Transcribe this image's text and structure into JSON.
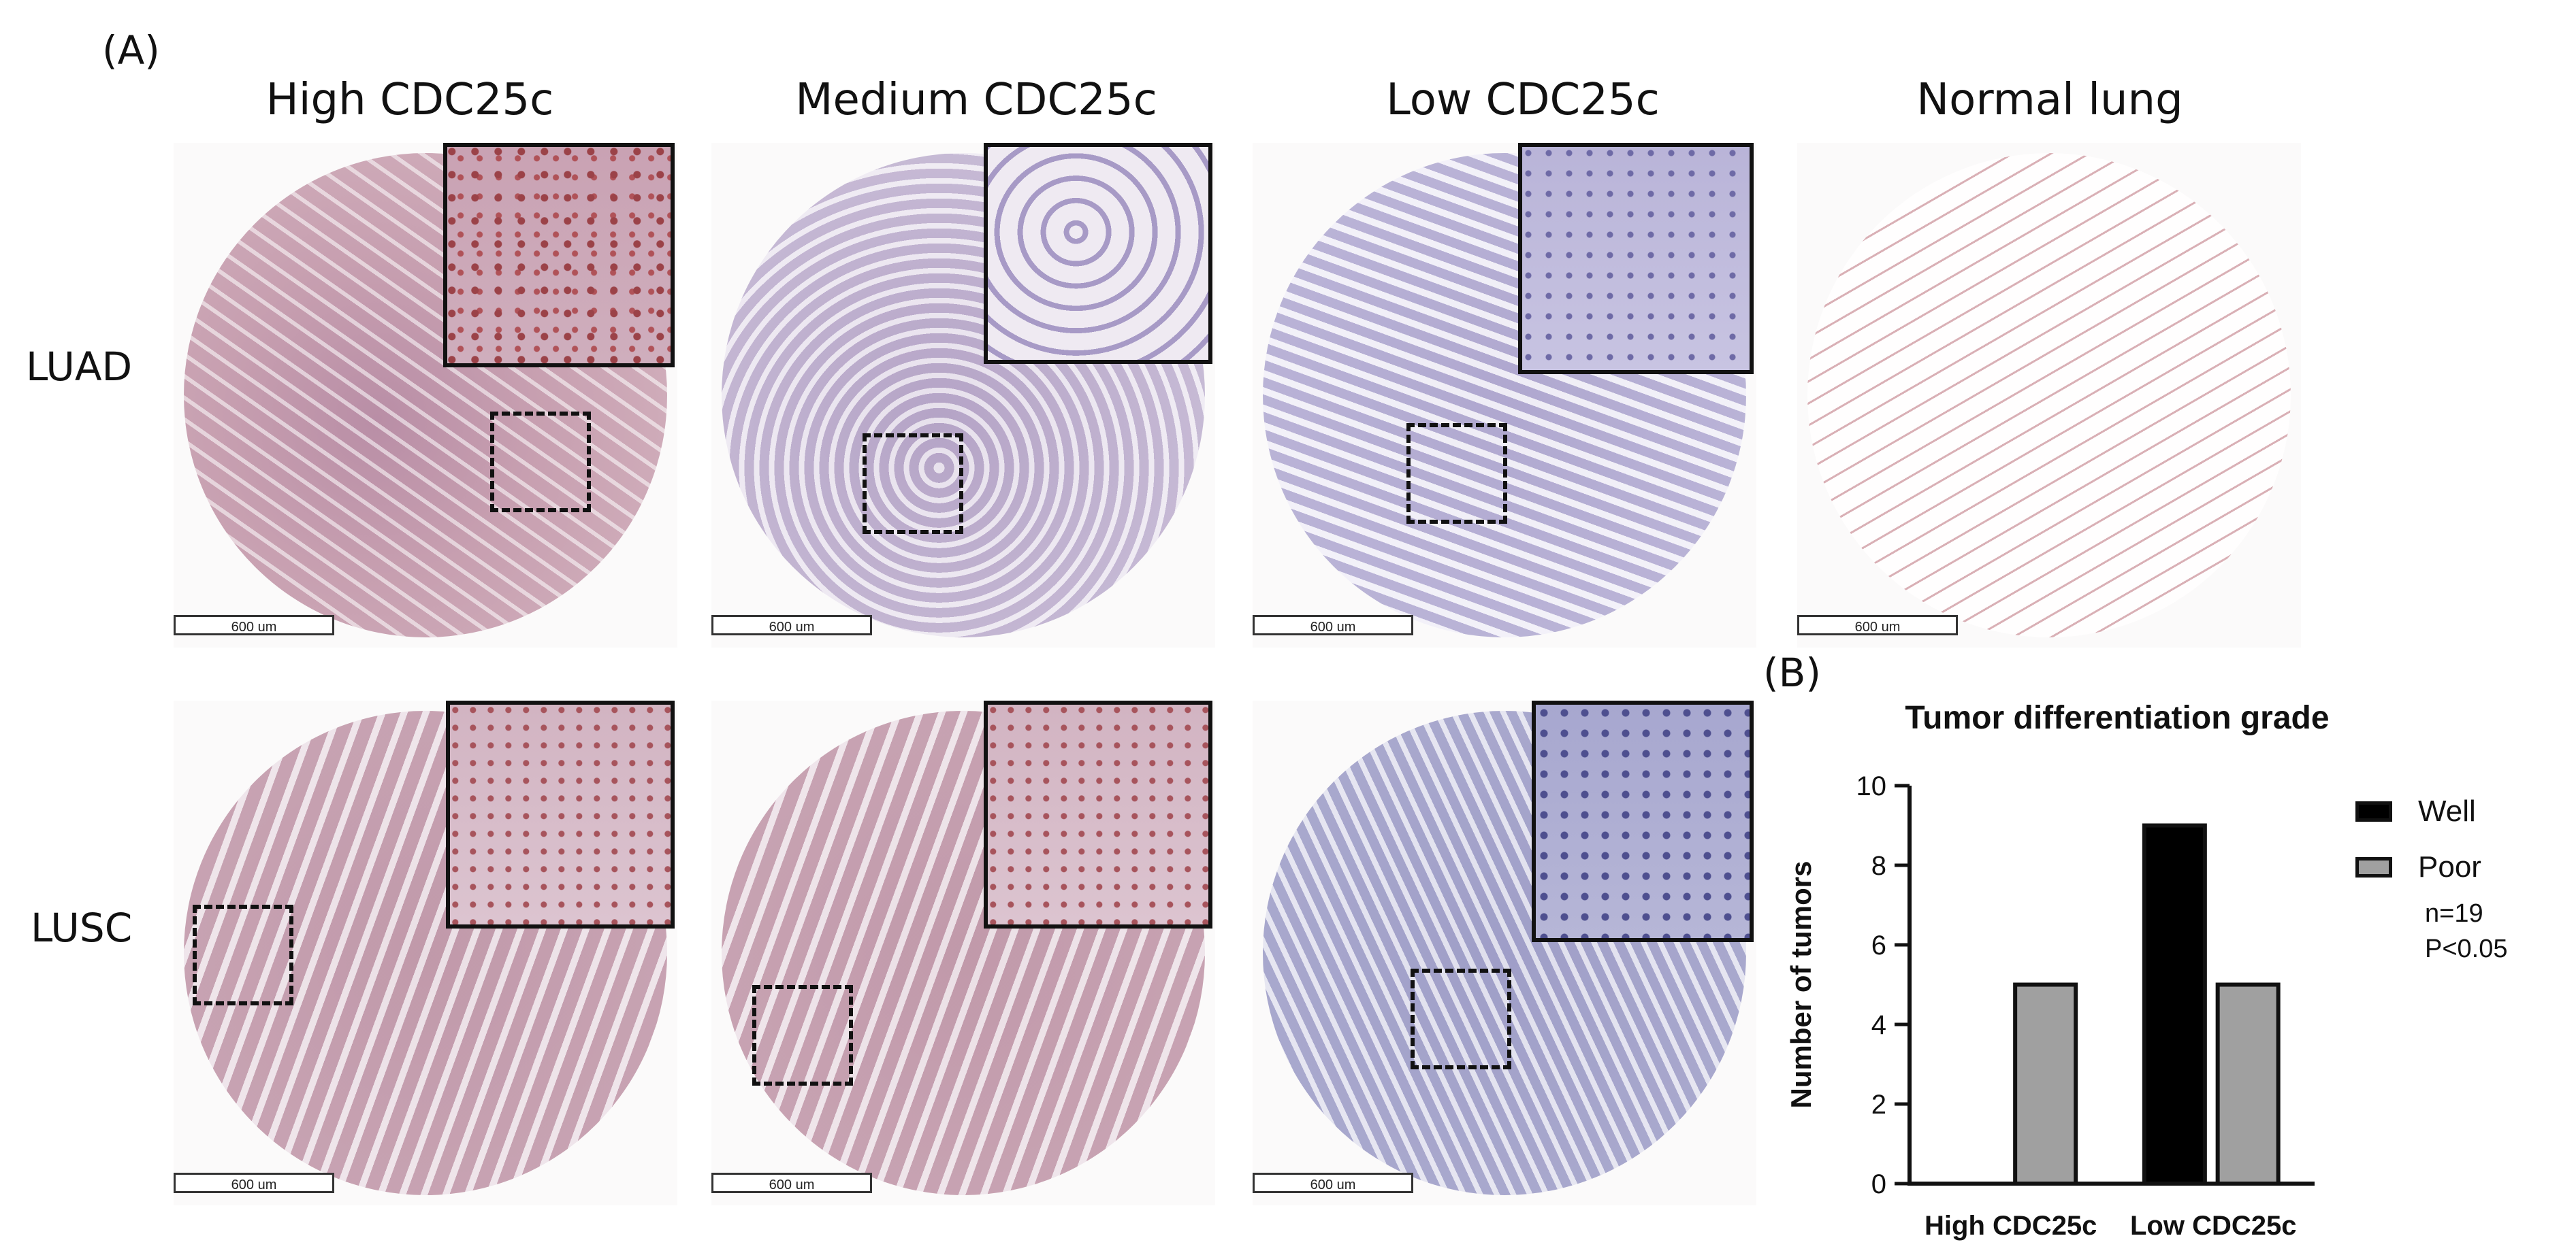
{
  "panels": {
    "a_label": "(A)",
    "b_label": "(B)"
  },
  "columns": [
    "High CDC25c",
    "Medium CDC25c",
    "Low CDC25c",
    "Normal lung"
  ],
  "rows": [
    "LUAD",
    "LUSC"
  ],
  "scale_bar": "600 um",
  "chart_data": {
    "type": "bar",
    "title": "Tumor differentiation grade",
    "categories": [
      "High CDC25c",
      "Low CDC25c"
    ],
    "series": [
      {
        "name": "Well",
        "values": [
          0,
          9
        ],
        "color": "#000000"
      },
      {
        "name": "Poor",
        "values": [
          5,
          5
        ],
        "color": "#a0a0a0"
      }
    ],
    "ylabel": "Number of tumors",
    "xlabel": "",
    "ylim": [
      0,
      10
    ],
    "yticks": [
      0,
      2,
      4,
      6,
      8,
      10
    ],
    "grid": false,
    "legend_position": "right",
    "annotations": [
      "n=19",
      "P<0.05"
    ]
  }
}
